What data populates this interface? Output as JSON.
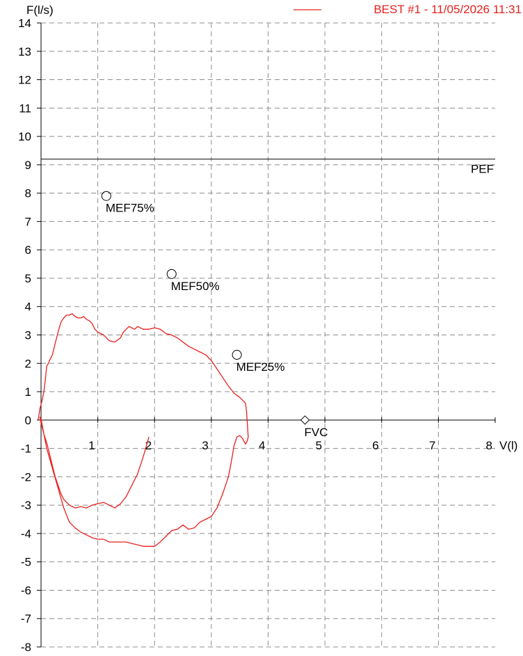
{
  "chart_data": {
    "type": "line",
    "ylabel": "F(l/s)",
    "xlabel": "V(l)",
    "xlim": [
      0,
      8
    ],
    "ylim": [
      -8,
      14
    ],
    "x_ticks": [
      "1",
      "2",
      "3",
      "4",
      "5",
      "6",
      "7",
      "8"
    ],
    "y_ticks": [
      "14",
      "13",
      "12",
      "11",
      "10",
      "9",
      "8",
      "7",
      "6",
      "5",
      "4",
      "3",
      "2",
      "1",
      "0",
      "-1",
      "-2",
      "-3",
      "-4",
      "-5",
      "-6",
      "-7",
      "-8"
    ],
    "y_tick_values": [
      14,
      13,
      12,
      11,
      10,
      9,
      8,
      7,
      6,
      5,
      4,
      3,
      2,
      1,
      0,
      -1,
      -2,
      -3,
      -4,
      -5,
      -6,
      -7,
      -8
    ],
    "grid": true,
    "legend_position": "top-right",
    "series_color": "#e8201e",
    "legend": {
      "label": "BEST #1 - 11/05/2026  11:31",
      "color": "#e8201e"
    },
    "series": [
      {
        "name": "BEST #1 - 11/05/2026  11:31",
        "x": [
          -0.05,
          -0.02,
          0.02,
          0.05,
          0.08,
          0.1,
          0.13,
          0.15,
          0.2,
          0.25,
          0.3,
          0.35,
          0.4,
          0.45,
          0.5,
          0.55,
          0.6,
          0.65,
          0.7,
          0.75,
          0.8,
          0.85,
          0.9,
          0.95,
          1.0,
          1.05,
          1.1,
          1.15,
          1.2,
          1.3,
          1.4,
          1.45,
          1.5,
          1.55,
          1.6,
          1.65,
          1.7,
          1.8,
          1.9,
          2.0,
          2.1,
          2.2,
          2.3,
          2.4,
          2.5,
          2.6,
          2.7,
          2.8,
          2.9,
          3.0,
          3.1,
          3.2,
          3.3,
          3.4,
          3.5,
          3.55,
          3.6,
          3.62,
          3.63,
          3.64,
          3.65,
          3.63,
          3.6,
          3.55,
          3.5,
          3.45,
          3.4,
          3.35,
          3.3,
          3.2,
          3.1,
          3.0,
          2.9,
          2.8,
          2.7,
          2.6,
          2.5,
          2.4,
          2.3,
          2.2,
          2.1,
          2.0,
          1.9,
          1.8,
          1.7,
          1.6,
          1.5,
          1.4,
          1.3,
          1.2,
          1.1,
          1.0,
          0.9,
          0.8,
          0.7,
          0.6,
          0.5,
          0.4,
          0.3,
          0.2,
          0.1,
          0.05,
          0.0,
          -0.02,
          0.0,
          0.05,
          0.1,
          0.15,
          0.2,
          0.25,
          0.3,
          0.35,
          0.4,
          0.5,
          0.6,
          0.7,
          0.8,
          0.9,
          1.0,
          1.1,
          1.2,
          1.3,
          1.4,
          1.5,
          1.6,
          1.7,
          1.8,
          1.9
        ],
        "y": [
          0.0,
          0.4,
          0.7,
          1.0,
          1.5,
          1.9,
          2.0,
          2.1,
          2.3,
          2.7,
          3.1,
          3.45,
          3.6,
          3.7,
          3.7,
          3.75,
          3.65,
          3.6,
          3.6,
          3.65,
          3.55,
          3.5,
          3.4,
          3.2,
          3.1,
          3.05,
          3.0,
          2.9,
          2.8,
          2.75,
          2.9,
          3.1,
          3.2,
          3.3,
          3.25,
          3.2,
          3.3,
          3.2,
          3.2,
          3.25,
          3.2,
          3.05,
          3.0,
          2.9,
          2.75,
          2.6,
          2.5,
          2.4,
          2.3,
          2.1,
          1.8,
          1.5,
          1.2,
          0.95,
          0.8,
          0.7,
          0.6,
          0.3,
          0.0,
          -0.3,
          -0.6,
          -0.75,
          -0.85,
          -0.65,
          -0.55,
          -0.6,
          -0.9,
          -1.5,
          -2.0,
          -2.6,
          -3.1,
          -3.4,
          -3.5,
          -3.6,
          -3.8,
          -3.85,
          -3.7,
          -3.85,
          -3.9,
          -4.1,
          -4.3,
          -4.45,
          -4.45,
          -4.45,
          -4.4,
          -4.35,
          -4.3,
          -4.3,
          -4.3,
          -4.3,
          -4.2,
          -4.2,
          -4.15,
          -4.05,
          -3.95,
          -3.8,
          -3.6,
          -3.1,
          -2.4,
          -1.7,
          -1.0,
          -0.5,
          -0.1,
          0.1,
          0.05,
          -0.5,
          -0.8,
          -1.2,
          -1.6,
          -2.0,
          -2.3,
          -2.6,
          -2.8,
          -3.0,
          -3.1,
          -3.05,
          -3.1,
          -3.0,
          -2.95,
          -2.9,
          -3.0,
          -3.1,
          -2.95,
          -2.7,
          -2.3,
          -1.9,
          -1.3,
          -0.6
        ]
      }
    ],
    "pef": {
      "value": 9.2,
      "label": "PEF"
    },
    "markers": [
      {
        "label": "MEF75%",
        "x": 1.15,
        "y": 7.9,
        "shape": "circle"
      },
      {
        "label": "MEF50%",
        "x": 2.3,
        "y": 5.15,
        "shape": "circle"
      },
      {
        "label": "MEF25%",
        "x": 3.45,
        "y": 2.3,
        "shape": "circle"
      },
      {
        "label": "FVC",
        "x": 4.65,
        "y": 0.0,
        "shape": "diamond"
      }
    ]
  }
}
